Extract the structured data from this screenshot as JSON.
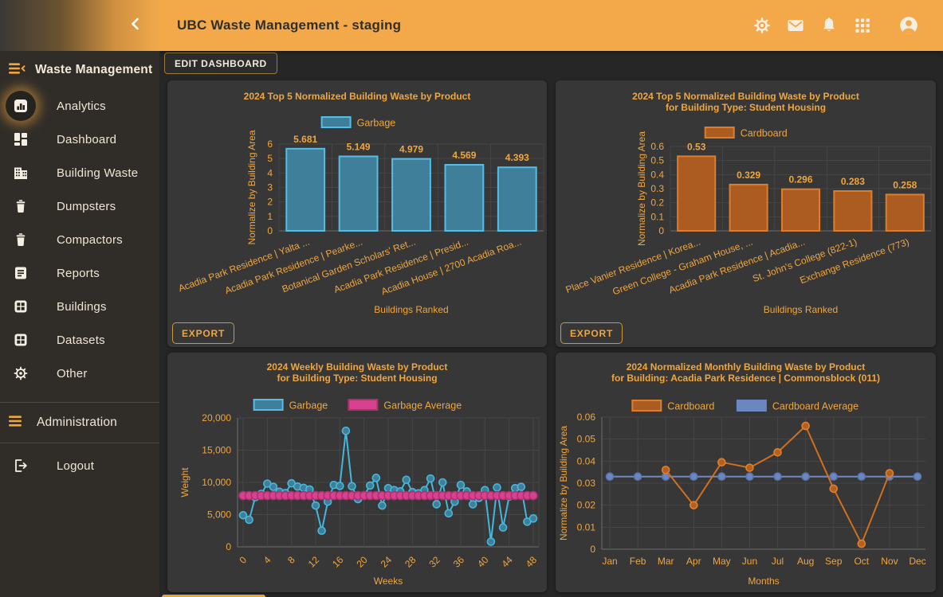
{
  "header": {
    "title": "UBC Waste Management - staging",
    "icons": [
      {
        "name": "settings-icon"
      },
      {
        "name": "mail-icon"
      },
      {
        "name": "notifications-icon"
      },
      {
        "name": "apps-icon"
      },
      {
        "name": "account-icon"
      }
    ]
  },
  "sidebar": {
    "title": "Waste Management",
    "items": [
      {
        "label": "Analytics",
        "icon": "bar-chart-icon",
        "active": true
      },
      {
        "label": "Dashboard",
        "icon": "dashboard-icon",
        "active": false
      },
      {
        "label": "Building Waste",
        "icon": "building-icon",
        "active": false
      },
      {
        "label": "Dumpsters",
        "icon": "trash-icon",
        "active": false
      },
      {
        "label": "Compactors",
        "icon": "trash-icon",
        "active": false
      },
      {
        "label": "Reports",
        "icon": "report-icon",
        "active": false
      },
      {
        "label": "Buildings",
        "icon": "grid-icon",
        "active": false
      },
      {
        "label": "Datasets",
        "icon": "grid-icon",
        "active": false
      },
      {
        "label": "Other",
        "icon": "gear-icon",
        "active": false
      }
    ],
    "admin_label": "Administration",
    "logout_label": "Logout"
  },
  "toolbar": {
    "edit_dashboard_label": "EDIT DASHBOARD"
  },
  "export_label": "EXPORT",
  "colors": {
    "header_orange": "#f3a94a",
    "accent_text": "#f0a63f",
    "page_bg": "#262626",
    "card_bg": "#373737",
    "sidebar_bg": "#302d29",
    "garbage_teal": "#3f7f9a",
    "garbage_teal_border": "#54bee6",
    "garbage_average_pink": "#d84090",
    "cardboard_brown": "#ad5c21",
    "cardboard_border": "#dd7d2c",
    "cardboard_average_blue": "#6c86c0"
  },
  "chart_data": [
    {
      "type": "bar",
      "title_lines": [
        "2024 Top 5 Normalized Building Waste by Product"
      ],
      "legend": [
        {
          "label": "Garbage",
          "fill": "#3f7f9a",
          "stroke": "#54bee6"
        }
      ],
      "categories": [
        "Acadia Park Residence | Yalta ...",
        "Acadia Park Residence | Pearke...",
        "Botanical Garden Scholars' Ret...",
        "Acadia Park Residence | Presid...",
        "Acadia House | 2700 Acadia Roa..."
      ],
      "values": [
        5.681,
        5.149,
        4.979,
        4.569,
        4.393
      ],
      "bar_fill": "#3f7f9a",
      "bar_stroke": "#54bee6",
      "ylabel": "Normalize by Building Area",
      "xlabel": "Buildings Ranked",
      "ylim": [
        0,
        6
      ],
      "ytick_step": 1,
      "export_button": true
    },
    {
      "type": "bar",
      "title_lines": [
        "2024 Top 5 Normalized Building Waste by Product",
        "for Building Type: Student Housing"
      ],
      "legend": [
        {
          "label": "Cardboard",
          "fill": "#ad5c21",
          "stroke": "#dd7d2c"
        }
      ],
      "categories": [
        "Place Vanier Residence | Korea...",
        "Green College - Graham House, ...",
        "Acadia Park Residence | Acadia...",
        "St. John's College (822-1)",
        "Exchange Residence (773)"
      ],
      "values": [
        0.53,
        0.329,
        0.296,
        0.283,
        0.258
      ],
      "bar_fill": "#ad5c21",
      "bar_stroke": "#dd7d2c",
      "ylabel": "Normalize by Building Area",
      "xlabel": "Buildings Ranked",
      "ylim": [
        0,
        0.6
      ],
      "ytick_step": 0.1,
      "export_button": true
    },
    {
      "type": "line",
      "title_lines": [
        "2024 Weekly Building Waste by Product",
        "for Building Type: Student Housing"
      ],
      "legend": [
        {
          "label": "Garbage",
          "fill": "#3f7f9a",
          "stroke": "#54bee6"
        },
        {
          "label": "Garbage Average",
          "fill": "#d84090",
          "stroke": "#b0306f"
        }
      ],
      "x_start": 0,
      "x_count": 49,
      "xticks": [
        0,
        4,
        8,
        12,
        16,
        20,
        24,
        28,
        32,
        36,
        40,
        44,
        48
      ],
      "series": [
        {
          "label": "Garbage",
          "line": "#45b7dd",
          "marker_fill": "#3f7f9a",
          "marker_stroke": "#45b7dd",
          "r": 4.5,
          "values": [
            4900,
            4200,
            7700,
            8200,
            9800,
            9300,
            8550,
            8350,
            9850,
            9350,
            9150,
            8900,
            6400,
            2500,
            7000,
            9600,
            9450,
            18000,
            9400,
            7400,
            7950,
            9500,
            10700,
            6400,
            9100,
            8800,
            8600,
            10400,
            8500,
            8300,
            8800,
            10600,
            6600,
            10000,
            5200,
            7000,
            9600,
            8600,
            6600,
            7600,
            8800,
            800,
            9200,
            3000,
            7800,
            9100,
            9300,
            3900,
            4400
          ]
        },
        {
          "label": "Garbage Average",
          "line": "#d84090",
          "marker_fill": "#d84090",
          "marker_stroke": "#b0306f",
          "r": 5,
          "constant": 7950
        }
      ],
      "ylabel": "Weight",
      "xlabel": "Weeks",
      "ylim": [
        0,
        20000
      ],
      "ytick_step": 5000,
      "export_button": false
    },
    {
      "type": "line",
      "title_lines": [
        "2024 Normalized Monthly Building Waste by Product",
        "for Building: Acadia Park Residence | Commonsblock (011)"
      ],
      "legend": [
        {
          "label": "Cardboard",
          "fill": "#ad5c21",
          "stroke": "#dd7d2c"
        },
        {
          "label": "Cardboard Average",
          "fill": "#6c86c0",
          "stroke": "#6c86c0"
        }
      ],
      "categories": [
        "Jan",
        "Feb",
        "Mar",
        "Apr",
        "May",
        "Jun",
        "Jul",
        "Aug",
        "Sep",
        "Oct",
        "Nov",
        "Dec"
      ],
      "series": [
        {
          "label": "Cardboard Average",
          "line": "#7289c2",
          "marker_fill": "#6c86c0",
          "marker_stroke": "#5b74ad",
          "r": 4.5,
          "constant": 0.033
        },
        {
          "label": "Cardboard",
          "line": "#d0701f",
          "marker_fill": "#b4601f",
          "marker_stroke": "#e0802e",
          "r": 4.5,
          "values": [
            null,
            null,
            0.036,
            0.02,
            0.0395,
            0.037,
            0.044,
            0.056,
            0.0275,
            0.0025,
            0.0345,
            null
          ]
        }
      ],
      "ylabel": "Normalize by Building Area",
      "xlabel": "Months",
      "ylim": [
        0,
        0.06
      ],
      "ytick_step": 0.01,
      "export_button": false
    }
  ]
}
